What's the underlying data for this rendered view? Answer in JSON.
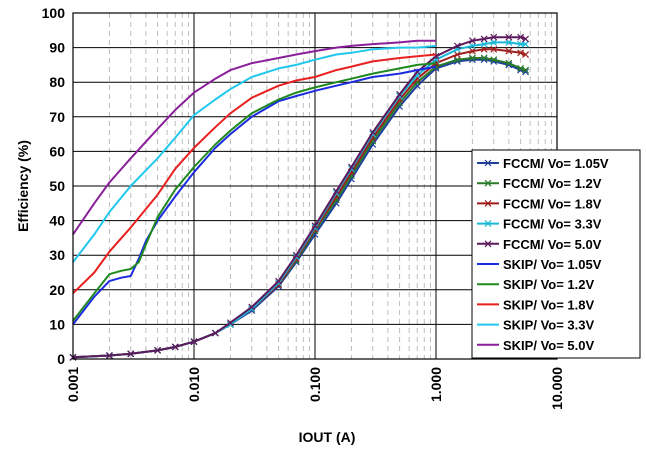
{
  "chart_data": {
    "type": "line",
    "xscale": "log",
    "xlim": [
      0.001,
      10
    ],
    "ylim": [
      0,
      100
    ],
    "grid": true,
    "legend_position": "bottom-right (inside plot)",
    "xlabel": "IOUT (A)",
    "ylabel": "Efficiency (%)",
    "xtick_labels": [
      "0.001",
      "0.010",
      "0.100",
      "1.000",
      "10.000"
    ],
    "xtick_values": [
      0.001,
      0.01,
      0.1,
      1,
      10
    ],
    "ytick_labels": [
      "0",
      "10",
      "20",
      "30",
      "40",
      "50",
      "60",
      "70",
      "80",
      "90",
      "100"
    ],
    "ytick_values": [
      0,
      10,
      20,
      30,
      40,
      50,
      60,
      70,
      80,
      90,
      100
    ],
    "series": [
      {
        "name": "FCCM/ Vo= 1.05V",
        "color": "#1f3f9f",
        "marker": "x",
        "x": [
          0.001,
          0.002,
          0.003,
          0.005,
          0.007,
          0.01,
          0.015,
          0.02,
          0.03,
          0.05,
          0.07,
          0.1,
          0.15,
          0.2,
          0.3,
          0.5,
          0.7,
          1.0,
          1.5,
          2.0,
          2.5,
          3.0,
          4.0,
          5.0,
          5.5
        ],
        "y": [
          0.5,
          1.0,
          1.5,
          2.5,
          3.5,
          5.0,
          7.5,
          10,
          14,
          21,
          28,
          36,
          45,
          52,
          62,
          73,
          79,
          84,
          86,
          86.5,
          86.5,
          86,
          85,
          83.5,
          83
        ]
      },
      {
        "name": "FCCM/ Vo= 1.2V",
        "color": "#2a7a2a",
        "marker": "x",
        "x": [
          0.001,
          0.002,
          0.003,
          0.005,
          0.007,
          0.01,
          0.015,
          0.02,
          0.03,
          0.05,
          0.07,
          0.1,
          0.15,
          0.2,
          0.3,
          0.5,
          0.7,
          1.0,
          1.5,
          2.0,
          2.5,
          3.0,
          4.0,
          5.0,
          5.5
        ],
        "y": [
          0.5,
          1.0,
          1.5,
          2.5,
          3.5,
          5.0,
          7.5,
          10,
          14.5,
          21.5,
          28.5,
          37,
          46,
          53,
          63,
          74,
          80,
          84.5,
          86.5,
          87,
          87,
          86.5,
          85.5,
          84,
          83.5
        ]
      },
      {
        "name": "FCCM/ Vo= 1.8V",
        "color": "#a01f1f",
        "marker": "x",
        "x": [
          0.001,
          0.002,
          0.003,
          0.005,
          0.007,
          0.01,
          0.015,
          0.02,
          0.03,
          0.05,
          0.07,
          0.1,
          0.15,
          0.2,
          0.3,
          0.5,
          0.7,
          1.0,
          1.5,
          2.0,
          2.5,
          3.0,
          4.0,
          5.0,
          5.5
        ],
        "y": [
          0.5,
          1.0,
          1.5,
          2.5,
          3.5,
          5.0,
          7.5,
          10,
          14.5,
          21.5,
          29,
          37.5,
          47,
          54,
          64,
          75,
          81,
          85.5,
          88,
          89,
          89.5,
          89.5,
          89,
          88.5,
          88
        ]
      },
      {
        "name": "FCCM/ Vo= 3.3V",
        "color": "#19b8d8",
        "marker": "x",
        "x": [
          0.001,
          0.002,
          0.003,
          0.005,
          0.007,
          0.01,
          0.015,
          0.02,
          0.03,
          0.05,
          0.07,
          0.1,
          0.15,
          0.2,
          0.3,
          0.5,
          0.7,
          1.0,
          1.5,
          2.0,
          2.5,
          3.0,
          4.0,
          5.0,
          5.5
        ],
        "y": [
          0.5,
          1.0,
          1.5,
          2.5,
          3.5,
          5.0,
          7.5,
          10,
          14.5,
          22,
          29.5,
          38,
          48,
          55,
          65,
          76,
          82,
          86.5,
          89.5,
          90.5,
          91,
          91.5,
          91.5,
          91,
          91
        ]
      },
      {
        "name": "FCCM/ Vo= 5.0V",
        "color": "#5c1a5c",
        "marker": "x",
        "x": [
          0.001,
          0.002,
          0.003,
          0.005,
          0.007,
          0.01,
          0.015,
          0.02,
          0.03,
          0.05,
          0.07,
          0.1,
          0.15,
          0.2,
          0.3,
          0.5,
          0.7,
          1.0,
          1.5,
          2.0,
          2.5,
          3.0,
          4.0,
          5.0,
          5.5
        ],
        "y": [
          0.5,
          1.0,
          1.5,
          2.5,
          3.5,
          5.0,
          7.5,
          10.5,
          15,
          22.5,
          30,
          38.5,
          48.5,
          55.5,
          65.5,
          76.5,
          83,
          87.5,
          90.5,
          92,
          92.5,
          93,
          93,
          93,
          92.5
        ]
      },
      {
        "name": "SKIP/ Vo= 1.05V",
        "color": "#1d2be0",
        "marker": "none",
        "x": [
          0.001,
          0.0015,
          0.002,
          0.0025,
          0.003,
          0.0035,
          0.004,
          0.005,
          0.007,
          0.01,
          0.015,
          0.02,
          0.03,
          0.05,
          0.07,
          0.1,
          0.15,
          0.2,
          0.3,
          0.5,
          0.7,
          1.0
        ],
        "y": [
          10,
          18,
          22.5,
          23.5,
          24,
          29,
          34,
          40,
          47,
          54,
          61,
          65,
          70,
          74.5,
          76,
          77.5,
          79,
          80,
          81.5,
          82.5,
          83.5,
          84.5
        ]
      },
      {
        "name": "SKIP/ Vo= 1.2V",
        "color": "#1e8a1e",
        "marker": "none",
        "x": [
          0.001,
          0.0015,
          0.002,
          0.0025,
          0.003,
          0.0035,
          0.004,
          0.005,
          0.007,
          0.01,
          0.015,
          0.02,
          0.03,
          0.05,
          0.07,
          0.1,
          0.15,
          0.2,
          0.3,
          0.5,
          0.7,
          1.0
        ],
        "y": [
          11,
          19,
          24.5,
          25.5,
          26,
          28,
          33,
          41,
          49,
          55.5,
          62,
          66,
          71,
          75,
          77,
          78.5,
          80,
          81,
          82.5,
          84,
          85,
          85.5
        ]
      },
      {
        "name": "SKIP/ Vo= 1.8V",
        "color": "#e82020",
        "marker": "none",
        "x": [
          0.001,
          0.0015,
          0.002,
          0.003,
          0.005,
          0.007,
          0.01,
          0.015,
          0.02,
          0.03,
          0.05,
          0.07,
          0.1,
          0.15,
          0.2,
          0.3,
          0.5,
          0.7,
          1.0
        ],
        "y": [
          19,
          25,
          31,
          38,
          47.5,
          55,
          61,
          67,
          71,
          75.5,
          79,
          80.5,
          81.5,
          83.5,
          84.5,
          86,
          87,
          87.5,
          88
        ]
      },
      {
        "name": "SKIP/ Vo= 3.3V",
        "color": "#22c7ee",
        "marker": "none",
        "x": [
          0.001,
          0.0015,
          0.002,
          0.003,
          0.005,
          0.007,
          0.01,
          0.015,
          0.02,
          0.03,
          0.05,
          0.07,
          0.1,
          0.15,
          0.2,
          0.3,
          0.5,
          0.7,
          1.0
        ],
        "y": [
          28,
          36,
          42.5,
          50,
          58,
          64,
          70.5,
          75,
          78,
          81.5,
          84,
          85,
          86.5,
          88,
          88.5,
          89.5,
          90,
          90,
          90.5
        ]
      },
      {
        "name": "SKIP/ Vo= 5.0V",
        "color": "#8a1f9a",
        "marker": "none",
        "x": [
          0.001,
          0.0015,
          0.002,
          0.003,
          0.005,
          0.007,
          0.01,
          0.015,
          0.02,
          0.03,
          0.05,
          0.07,
          0.1,
          0.15,
          0.2,
          0.3,
          0.5,
          0.7,
          1.0
        ],
        "y": [
          36,
          45,
          51,
          58,
          66.5,
          72,
          77,
          81,
          83.5,
          85.5,
          87,
          88,
          89,
          90,
          90.5,
          91,
          91.5,
          92,
          92
        ]
      }
    ]
  }
}
